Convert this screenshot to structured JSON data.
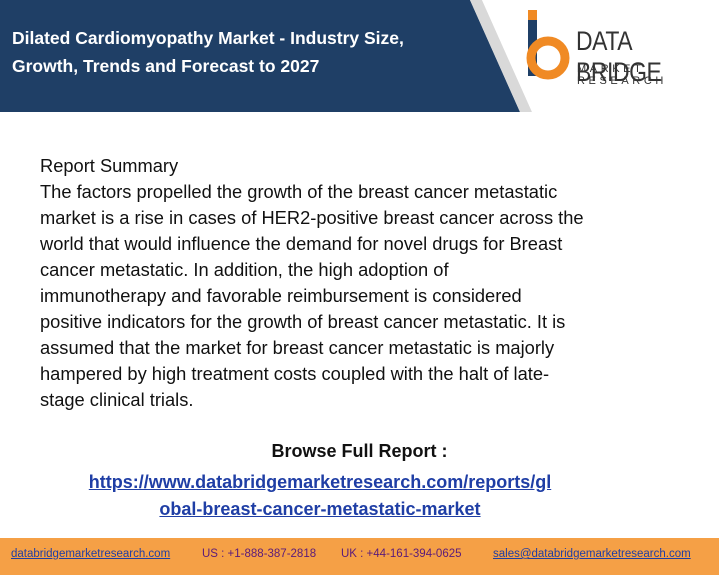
{
  "header": {
    "title_lines": [
      "Dilated Cardiomyopathy Market - Industry Size,",
      "Growth, Trends and Forecast to 2027"
    ],
    "logo_name": "DATA BRIDGE",
    "logo_tagline": "MARKET RESEARCH"
  },
  "body": {
    "heading": "Report Summary",
    "lines": [
      "The factors propelled the growth of the breast cancer metastatic",
      "market is a rise in cases of HER2-positive breast cancer across the",
      "world that would influence the demand for novel drugs for Breast",
      "cancer metastatic. In addition, the high adoption of",
      "immunotherapy and favorable reimbursement is considered",
      "positive indicators for the growth of breast cancer metastatic. It is",
      "assumed that the market for breast cancer metastatic is majorly",
      "hampered by high treatment costs coupled with the halt of late-",
      "stage clinical trials."
    ],
    "browse_label": "Browse Full Report :",
    "link_lines": [
      "https://www.databridgemarketresearch.com/reports/gl",
      "obal-breast-cancer-metastatic-market"
    ]
  },
  "footer": {
    "website": "databridgemarketresearch.com",
    "us_phone": "US : +1-888-387-2818",
    "uk_phone": "UK : +44-161-394-0625",
    "email": "sales@databridgemarketresearch.com"
  }
}
